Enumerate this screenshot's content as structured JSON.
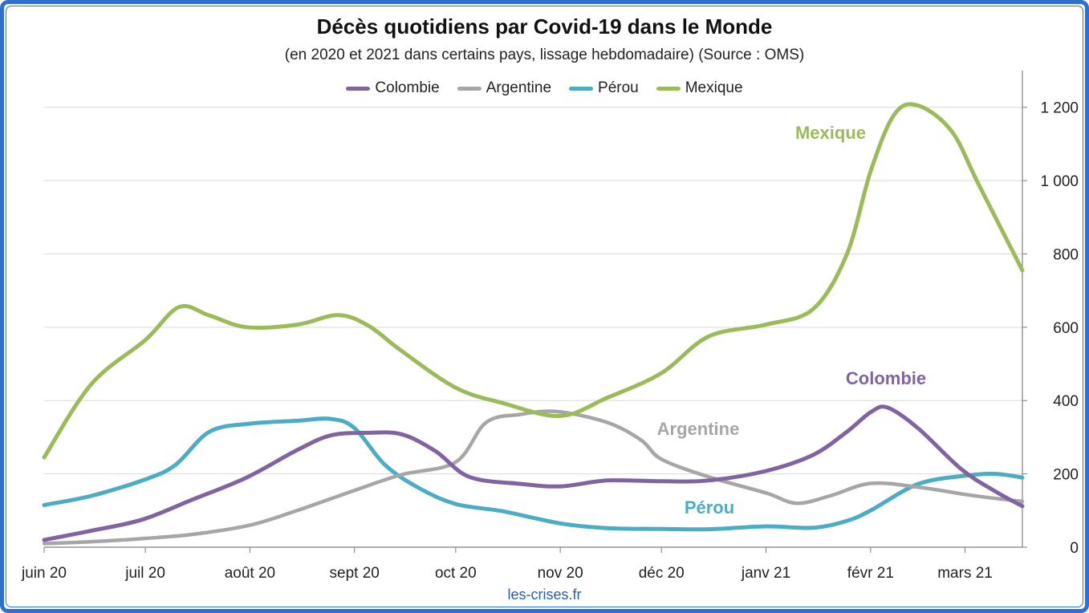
{
  "chart_data": {
    "type": "line",
    "title": "Décès quotidiens par Covid-19 dans le Monde",
    "subtitle": "(en 2020 et 2021 dans certains pays, lissage hebdomadaire) (Source : OMS)",
    "source_note": "les-crises.fr",
    "xlabel": "",
    "ylabel": "",
    "x_ticks": [
      "juin 20",
      "juil 20",
      "août 20",
      "sept 20",
      "oct 20",
      "nov 20",
      "déc 20",
      "janv 21",
      "févr 21",
      "mars 21"
    ],
    "x_tick_dates": [
      "2020-06-01",
      "2020-07-01",
      "2020-08-01",
      "2020-09-01",
      "2020-10-01",
      "2020-11-01",
      "2020-12-01",
      "2021-01-01",
      "2021-02-01",
      "2021-03-01"
    ],
    "x_range": [
      "2020-06-01",
      "2021-03-18"
    ],
    "ylim": [
      0,
      1300
    ],
    "y_ticks": [
      0,
      200,
      400,
      600,
      800,
      1000,
      1200
    ],
    "y_tick_labels": [
      "0",
      "200",
      "400",
      "600",
      "800",
      "1 000",
      "1 200"
    ],
    "y_axis_side": "right",
    "grid": true,
    "legend_position": "top-center",
    "series": [
      {
        "name": "Colombie",
        "color": "#8064a2",
        "inline_label": "Colombie",
        "points": [
          [
            "2020-06-01",
            20
          ],
          [
            "2020-06-15",
            45
          ],
          [
            "2020-06-30",
            75
          ],
          [
            "2020-07-15",
            130
          ],
          [
            "2020-07-31",
            190
          ],
          [
            "2020-08-15",
            265
          ],
          [
            "2020-08-25",
            305
          ],
          [
            "2020-09-05",
            312
          ],
          [
            "2020-09-15",
            308
          ],
          [
            "2020-09-25",
            262
          ],
          [
            "2020-10-05",
            192
          ],
          [
            "2020-10-20",
            173
          ],
          [
            "2020-11-01",
            166
          ],
          [
            "2020-11-15",
            182
          ],
          [
            "2020-12-01",
            180
          ],
          [
            "2020-12-15",
            182
          ],
          [
            "2021-01-01",
            208
          ],
          [
            "2021-01-15",
            252
          ],
          [
            "2021-01-25",
            315
          ],
          [
            "2021-02-01",
            368
          ],
          [
            "2021-02-06",
            381
          ],
          [
            "2021-02-15",
            325
          ],
          [
            "2021-02-28",
            212
          ],
          [
            "2021-03-10",
            152
          ],
          [
            "2021-03-18",
            112
          ]
        ]
      },
      {
        "name": "Argentine",
        "color": "#a6a6a6",
        "inline_label": "Argentine",
        "points": [
          [
            "2020-06-01",
            10
          ],
          [
            "2020-06-15",
            15
          ],
          [
            "2020-07-01",
            24
          ],
          [
            "2020-07-15",
            35
          ],
          [
            "2020-08-01",
            60
          ],
          [
            "2020-08-15",
            100
          ],
          [
            "2020-09-01",
            155
          ],
          [
            "2020-09-15",
            198
          ],
          [
            "2020-10-01",
            232
          ],
          [
            "2020-10-10",
            340
          ],
          [
            "2020-10-20",
            362
          ],
          [
            "2020-10-31",
            370
          ],
          [
            "2020-11-15",
            340
          ],
          [
            "2020-11-25",
            292
          ],
          [
            "2020-12-01",
            240
          ],
          [
            "2020-12-15",
            192
          ],
          [
            "2021-01-01",
            148
          ],
          [
            "2021-01-10",
            120
          ],
          [
            "2021-01-20",
            140
          ],
          [
            "2021-02-01",
            174
          ],
          [
            "2021-02-15",
            164
          ],
          [
            "2021-03-01",
            144
          ],
          [
            "2021-03-10",
            133
          ],
          [
            "2021-03-18",
            125
          ]
        ]
      },
      {
        "name": "Pérou",
        "color": "#4bacc6",
        "inline_label": "Pérou",
        "points": [
          [
            "2020-06-01",
            115
          ],
          [
            "2020-06-15",
            140
          ],
          [
            "2020-07-01",
            185
          ],
          [
            "2020-07-10",
            225
          ],
          [
            "2020-07-20",
            315
          ],
          [
            "2020-08-01",
            337
          ],
          [
            "2020-08-15",
            345
          ],
          [
            "2020-08-25",
            350
          ],
          [
            "2020-09-01",
            325
          ],
          [
            "2020-09-10",
            225
          ],
          [
            "2020-09-20",
            162
          ],
          [
            "2020-10-01",
            118
          ],
          [
            "2020-10-15",
            98
          ],
          [
            "2020-11-01",
            65
          ],
          [
            "2020-11-15",
            52
          ],
          [
            "2020-12-01",
            50
          ],
          [
            "2020-12-15",
            49
          ],
          [
            "2021-01-01",
            57
          ],
          [
            "2021-01-15",
            53
          ],
          [
            "2021-01-25",
            72
          ],
          [
            "2021-02-01",
            100
          ],
          [
            "2021-02-15",
            172
          ],
          [
            "2021-03-01",
            195
          ],
          [
            "2021-03-10",
            200
          ],
          [
            "2021-03-18",
            190
          ]
        ]
      },
      {
        "name": "Mexique",
        "color": "#9bbb59",
        "inline_label": "Mexique",
        "points": [
          [
            "2020-06-01",
            245
          ],
          [
            "2020-06-15",
            445
          ],
          [
            "2020-07-01",
            565
          ],
          [
            "2020-07-11",
            655
          ],
          [
            "2020-07-20",
            632
          ],
          [
            "2020-07-31",
            600
          ],
          [
            "2020-08-15",
            607
          ],
          [
            "2020-08-27",
            633
          ],
          [
            "2020-09-05",
            605
          ],
          [
            "2020-09-15",
            535
          ],
          [
            "2020-10-01",
            435
          ],
          [
            "2020-10-15",
            393
          ],
          [
            "2020-11-01",
            358
          ],
          [
            "2020-11-15",
            408
          ],
          [
            "2020-12-01",
            475
          ],
          [
            "2020-12-15",
            575
          ],
          [
            "2021-01-01",
            607
          ],
          [
            "2021-01-15",
            650
          ],
          [
            "2021-01-25",
            800
          ],
          [
            "2021-02-01",
            1025
          ],
          [
            "2021-02-08",
            1180
          ],
          [
            "2021-02-15",
            1205
          ],
          [
            "2021-02-25",
            1135
          ],
          [
            "2021-03-05",
            990
          ],
          [
            "2021-03-18",
            755
          ]
        ]
      }
    ]
  }
}
